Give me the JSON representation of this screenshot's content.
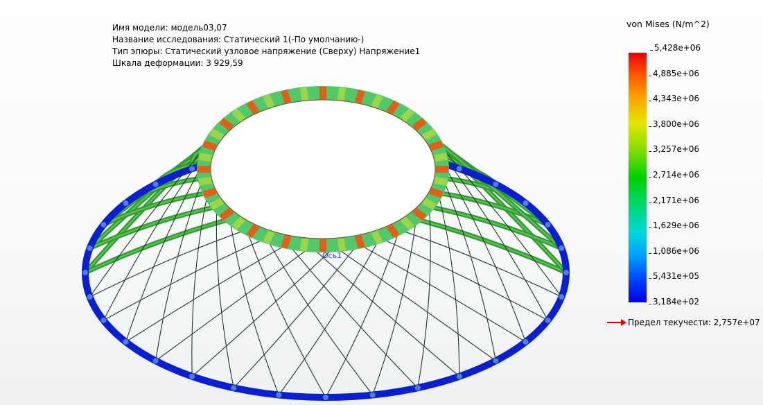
{
  "info": {
    "model_name": "Имя модели: модель03,07",
    "study_name": "Название исследования: Статический 1(-По умолчанию-)",
    "plot_type": "Тип эпюры: Статический узловое напряжение (Сверху) Напряжение1",
    "deformation_scale": "Шкала деформации: 3 929,59"
  },
  "legend": {
    "title": "von Mises (N/m^2)",
    "ticks": [
      "5,428e+06",
      "4,885e+06",
      "4,343e+06",
      "3,800e+06",
      "3,257e+06",
      "2,714e+06",
      "2,171e+06",
      "1,629e+06",
      "1,086e+06",
      "5,431e+05",
      "3,184e+02"
    ],
    "yield": "Предел текучести: 2,757e+07",
    "yield_arrow_color": "#e00000"
  },
  "model": {
    "axis_label": "Ось1",
    "colors": {
      "outer_ring": "#0a1fd0",
      "ribs": "#2f9a36",
      "ribs_light": "#5cc04a",
      "inner_ring": "#52c86a",
      "inner_ring_hot": "#e0601a",
      "axis": "#2a36ff"
    }
  }
}
